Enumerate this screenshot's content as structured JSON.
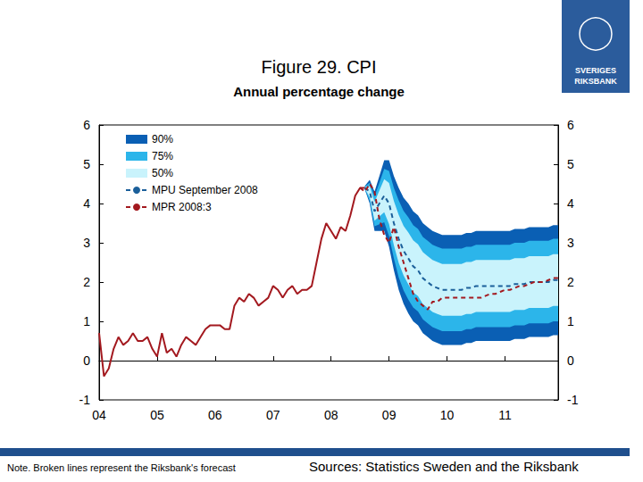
{
  "chart_data": {
    "type": "line",
    "title": "Figure 29. CPI",
    "subtitle": "Annual percentage change",
    "note": "Note. Broken lines represent the Riksbank's forecast",
    "source": "Sources: Statistics Sweden and the Riksbank",
    "logo": [
      "SVERIGES",
      "RIKSBANK"
    ],
    "categories": [
      "04",
      null,
      null,
      null,
      null,
      null,
      null,
      null,
      null,
      null,
      null,
      null,
      "05",
      null,
      null,
      null,
      null,
      null,
      null,
      null,
      null,
      null,
      null,
      null,
      "06",
      null,
      null,
      null,
      null,
      null,
      null,
      null,
      null,
      null,
      null,
      null,
      "07",
      null,
      null,
      null,
      null,
      null,
      null,
      null,
      null,
      null,
      null,
      null,
      "08",
      null,
      null,
      null,
      null,
      null,
      null,
      null,
      null,
      null,
      null,
      null,
      "09",
      null,
      null,
      null,
      null,
      null,
      null,
      null,
      null,
      null,
      null,
      null,
      "10",
      null,
      null,
      null,
      null,
      null,
      null,
      null,
      null,
      null,
      null,
      null,
      "11",
      null,
      null,
      null,
      null,
      null,
      null,
      null,
      null,
      null,
      null,
      null
    ],
    "ylim": [
      -1,
      6
    ],
    "yticks": [
      -1,
      0,
      1,
      2,
      3,
      4,
      5,
      6
    ],
    "grid": false,
    "legend": "upper left",
    "bands": [
      {
        "name": "90%",
        "color": "#0a5fb4",
        "lower": [
          null,
          null,
          null,
          null,
          null,
          null,
          null,
          null,
          null,
          null,
          null,
          null,
          null,
          null,
          null,
          null,
          null,
          null,
          null,
          null,
          null,
          null,
          null,
          null,
          null,
          null,
          null,
          null,
          null,
          null,
          null,
          null,
          null,
          null,
          null,
          null,
          null,
          null,
          null,
          null,
          null,
          null,
          null,
          null,
          null,
          null,
          null,
          null,
          null,
          null,
          null,
          null,
          null,
          null,
          null,
          4.35,
          4.0,
          3.3,
          3.3,
          3.3,
          2.9,
          2.3,
          1.8,
          1.45,
          1.2,
          1.0,
          0.9,
          0.7,
          0.6,
          0.5,
          0.45,
          0.4,
          0.4,
          0.4,
          0.4,
          0.4,
          0.45,
          0.45,
          0.5,
          0.5,
          0.5,
          0.5,
          0.5,
          0.5,
          0.5,
          0.5,
          0.55,
          0.55,
          0.55,
          0.6,
          0.6,
          0.6,
          0.6,
          0.6,
          0.65,
          0.65
        ],
        "upper": [
          null,
          null,
          null,
          null,
          null,
          null,
          null,
          null,
          null,
          null,
          null,
          null,
          null,
          null,
          null,
          null,
          null,
          null,
          null,
          null,
          null,
          null,
          null,
          null,
          null,
          null,
          null,
          null,
          null,
          null,
          null,
          null,
          null,
          null,
          null,
          null,
          null,
          null,
          null,
          null,
          null,
          null,
          null,
          null,
          null,
          null,
          null,
          null,
          null,
          null,
          null,
          null,
          null,
          null,
          null,
          4.45,
          4.6,
          4.3,
          4.7,
          5.1,
          5.1,
          4.7,
          4.4,
          4.15,
          4.0,
          3.8,
          3.7,
          3.5,
          3.4,
          3.3,
          3.25,
          3.2,
          3.2,
          3.2,
          3.2,
          3.2,
          3.25,
          3.25,
          3.3,
          3.3,
          3.3,
          3.3,
          3.3,
          3.3,
          3.3,
          3.3,
          3.35,
          3.35,
          3.35,
          3.4,
          3.4,
          3.4,
          3.4,
          3.4,
          3.45,
          3.45
        ]
      },
      {
        "name": "75%",
        "color": "#2cb5ea",
        "lower": [
          null,
          null,
          null,
          null,
          null,
          null,
          null,
          null,
          null,
          null,
          null,
          null,
          null,
          null,
          null,
          null,
          null,
          null,
          null,
          null,
          null,
          null,
          null,
          null,
          null,
          null,
          null,
          null,
          null,
          null,
          null,
          null,
          null,
          null,
          null,
          null,
          null,
          null,
          null,
          null,
          null,
          null,
          null,
          null,
          null,
          null,
          null,
          null,
          null,
          null,
          null,
          null,
          null,
          null,
          null,
          4.36,
          4.07,
          3.42,
          3.47,
          3.52,
          3.17,
          2.6,
          2.12,
          1.79,
          1.55,
          1.35,
          1.25,
          1.05,
          0.95,
          0.85,
          0.8,
          0.75,
          0.75,
          0.75,
          0.75,
          0.75,
          0.8,
          0.8,
          0.85,
          0.85,
          0.85,
          0.85,
          0.85,
          0.85,
          0.85,
          0.85,
          0.9,
          0.9,
          0.9,
          0.95,
          0.95,
          0.95,
          0.95,
          0.95,
          1.0,
          1.0
        ],
        "upper": [
          null,
          null,
          null,
          null,
          null,
          null,
          null,
          null,
          null,
          null,
          null,
          null,
          null,
          null,
          null,
          null,
          null,
          null,
          null,
          null,
          null,
          null,
          null,
          null,
          null,
          null,
          null,
          null,
          null,
          null,
          null,
          null,
          null,
          null,
          null,
          null,
          null,
          null,
          null,
          null,
          null,
          null,
          null,
          null,
          null,
          null,
          null,
          null,
          null,
          null,
          null,
          null,
          null,
          null,
          null,
          4.44,
          4.53,
          4.18,
          4.53,
          4.88,
          4.83,
          4.4,
          4.08,
          3.81,
          3.65,
          3.45,
          3.35,
          3.15,
          3.05,
          2.95,
          2.9,
          2.85,
          2.85,
          2.85,
          2.85,
          2.85,
          2.9,
          2.9,
          2.95,
          2.95,
          2.95,
          2.95,
          2.95,
          2.95,
          2.95,
          2.95,
          3.0,
          3.0,
          3.0,
          3.05,
          3.05,
          3.05,
          3.05,
          3.05,
          3.1,
          3.1
        ]
      },
      {
        "name": "50%",
        "color": "#c9f3fc",
        "lower": [
          null,
          null,
          null,
          null,
          null,
          null,
          null,
          null,
          null,
          null,
          null,
          null,
          null,
          null,
          null,
          null,
          null,
          null,
          null,
          null,
          null,
          null,
          null,
          null,
          null,
          null,
          null,
          null,
          null,
          null,
          null,
          null,
          null,
          null,
          null,
          null,
          null,
          null,
          null,
          null,
          null,
          null,
          null,
          null,
          null,
          null,
          null,
          null,
          null,
          null,
          null,
          null,
          null,
          null,
          null,
          4.38,
          4.16,
          3.56,
          3.67,
          3.78,
          3.48,
          2.94,
          2.49,
          2.17,
          1.94,
          1.74,
          1.64,
          1.44,
          1.34,
          1.24,
          1.19,
          1.14,
          1.14,
          1.14,
          1.14,
          1.14,
          1.19,
          1.19,
          1.24,
          1.24,
          1.24,
          1.24,
          1.24,
          1.24,
          1.24,
          1.24,
          1.29,
          1.29,
          1.29,
          1.34,
          1.34,
          1.34,
          1.34,
          1.34,
          1.39,
          1.39
        ],
        "upper": [
          null,
          null,
          null,
          null,
          null,
          null,
          null,
          null,
          null,
          null,
          null,
          null,
          null,
          null,
          null,
          null,
          null,
          null,
          null,
          null,
          null,
          null,
          null,
          null,
          null,
          null,
          null,
          null,
          null,
          null,
          null,
          null,
          null,
          null,
          null,
          null,
          null,
          null,
          null,
          null,
          null,
          null,
          null,
          null,
          null,
          null,
          null,
          null,
          null,
          null,
          null,
          null,
          null,
          null,
          null,
          4.42,
          4.44,
          4.04,
          4.33,
          4.62,
          4.52,
          4.06,
          3.71,
          3.43,
          3.26,
          3.06,
          2.96,
          2.76,
          2.66,
          2.56,
          2.51,
          2.46,
          2.46,
          2.46,
          2.46,
          2.46,
          2.51,
          2.51,
          2.56,
          2.56,
          2.56,
          2.56,
          2.56,
          2.56,
          2.56,
          2.56,
          2.61,
          2.61,
          2.61,
          2.66,
          2.66,
          2.66,
          2.66,
          2.66,
          2.71,
          2.71
        ]
      }
    ],
    "series": [
      {
        "color": "#a3191f",
        "line_style": "solid",
        "values": [
          0.7,
          -0.4,
          -0.2,
          0.3,
          0.6,
          0.4,
          0.5,
          0.7,
          0.5,
          0.5,
          0.6,
          0.3,
          0.1,
          0.7,
          0.2,
          0.3,
          0.1,
          0.4,
          0.6,
          0.5,
          0.4,
          0.6,
          0.8,
          0.9,
          0.9,
          0.9,
          0.8,
          0.8,
          1.4,
          1.6,
          1.5,
          1.7,
          1.6,
          1.4,
          1.5,
          1.6,
          1.9,
          1.8,
          1.6,
          1.8,
          1.9,
          1.7,
          1.8,
          1.8,
          1.9,
          2.5,
          3.1,
          3.5,
          3.3,
          3.1,
          3.4,
          3.3,
          3.7,
          4.2,
          4.4,
          4.4,
          null,
          null,
          null,
          null,
          null,
          null,
          null,
          null,
          null,
          null,
          null,
          null,
          null,
          null,
          null,
          null,
          null,
          null,
          null,
          null,
          null,
          null,
          null,
          null,
          null,
          null,
          null,
          null,
          null,
          null,
          null,
          null,
          null,
          null,
          null,
          null,
          null,
          null,
          null,
          null
        ]
      },
      {
        "name": "MPU September 2008",
        "color": "#1b5f9a",
        "line_style": "dashed",
        "values": [
          null,
          null,
          null,
          null,
          null,
          null,
          null,
          null,
          null,
          null,
          null,
          null,
          null,
          null,
          null,
          null,
          null,
          null,
          null,
          null,
          null,
          null,
          null,
          null,
          null,
          null,
          null,
          null,
          null,
          null,
          null,
          null,
          null,
          null,
          null,
          null,
          null,
          null,
          null,
          null,
          null,
          null,
          null,
          null,
          null,
          null,
          null,
          null,
          null,
          null,
          null,
          null,
          null,
          null,
          null,
          4.4,
          4.3,
          3.8,
          4.0,
          4.2,
          4.0,
          3.5,
          3.1,
          2.8,
          2.6,
          2.4,
          2.3,
          2.1,
          2.0,
          1.9,
          1.85,
          1.8,
          1.8,
          1.8,
          1.8,
          1.8,
          1.85,
          1.85,
          1.9,
          1.9,
          1.9,
          1.9,
          1.9,
          1.9,
          1.9,
          1.9,
          1.95,
          1.95,
          1.95,
          2.0,
          2.0,
          2.0,
          2.0,
          2.0,
          2.05,
          2.05
        ]
      },
      {
        "name": "MPR 2008:3",
        "color": "#a3191f",
        "line_style": "dashed",
        "values": [
          null,
          null,
          null,
          null,
          null,
          null,
          null,
          null,
          null,
          null,
          null,
          null,
          null,
          null,
          null,
          null,
          null,
          null,
          null,
          null,
          null,
          null,
          null,
          null,
          null,
          null,
          null,
          null,
          null,
          null,
          null,
          null,
          null,
          null,
          null,
          null,
          null,
          null,
          null,
          null,
          null,
          null,
          null,
          null,
          null,
          null,
          null,
          null,
          null,
          null,
          null,
          null,
          null,
          null,
          4.4,
          4.3,
          4.5,
          4.3,
          3.6,
          3.2,
          3.0,
          3.4,
          2.9,
          2.5,
          2.1,
          1.7,
          1.5,
          1.4,
          1.3,
          1.5,
          1.5,
          1.6,
          1.6,
          1.6,
          1.6,
          1.6,
          1.6,
          1.6,
          1.6,
          1.6,
          1.65,
          1.7,
          1.7,
          1.75,
          1.8,
          1.8,
          1.85,
          1.9,
          1.9,
          1.95,
          2.0,
          2.0,
          2.0,
          2.05,
          2.1,
          2.1
        ]
      }
    ]
  }
}
